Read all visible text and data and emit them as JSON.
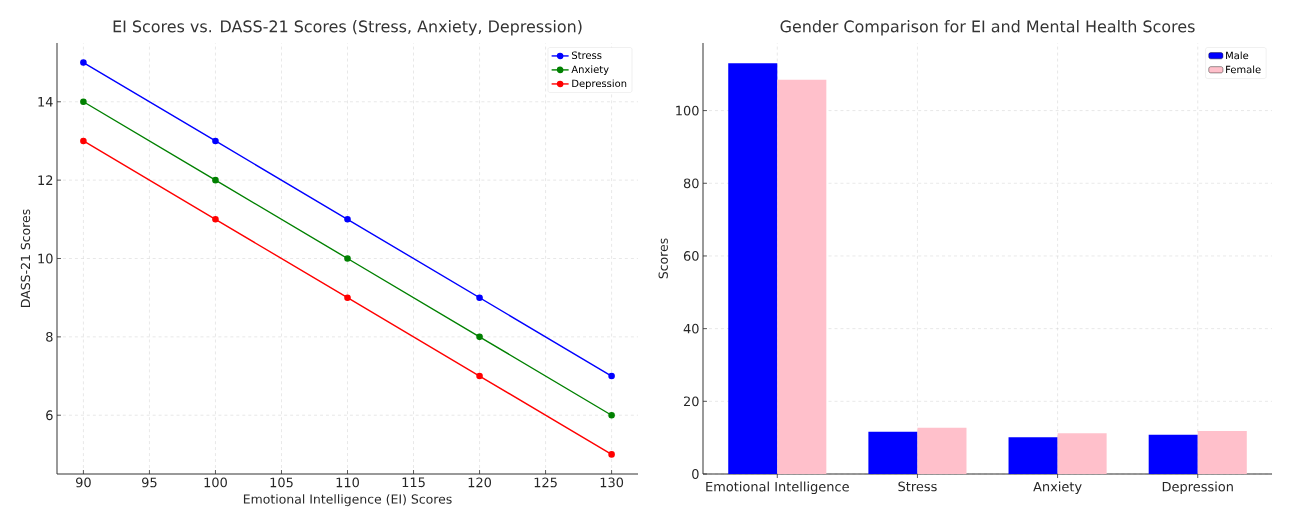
{
  "chart_data": [
    {
      "type": "line",
      "title": "EI Scores vs. DASS-21 Scores (Stress, Anxiety, Depression)",
      "xlabel": "Emotional Intelligence (EI) Scores",
      "ylabel": "DASS-21 Scores",
      "x": [
        90,
        100,
        110,
        120,
        130
      ],
      "series": [
        {
          "name": "Stress",
          "color": "#0000ff",
          "values": [
            15,
            13,
            11,
            9,
            7
          ]
        },
        {
          "name": "Anxiety",
          "color": "#008000",
          "values": [
            14,
            12,
            10,
            8,
            6
          ]
        },
        {
          "name": "Depression",
          "color": "#ff0000",
          "values": [
            13,
            11,
            9,
            7,
            5
          ]
        }
      ],
      "xlim": [
        88,
        132
      ],
      "ylim": [
        4.5,
        15.5
      ],
      "xticks": [
        90,
        95,
        100,
        105,
        110,
        115,
        120,
        125,
        130
      ],
      "yticks": [
        6,
        8,
        10,
        12,
        14
      ],
      "grid": true,
      "legend": "top right",
      "marker": "circle",
      "line_style": "solid"
    },
    {
      "type": "bar",
      "title": "Gender Comparison for EI and Mental Health Scores",
      "ylabel": "Scores",
      "categories": [
        "Emotional Intelligence",
        "Stress",
        "Anxiety",
        "Depression"
      ],
      "series": [
        {
          "name": "Male",
          "color": "#0000ff",
          "values": [
            113,
            11.6,
            10.1,
            10.8
          ]
        },
        {
          "name": "Female",
          "color": "#ffc0cb",
          "values": [
            108.5,
            12.7,
            11.2,
            11.8
          ]
        }
      ],
      "ylim": [
        0,
        118.6
      ],
      "yticks": [
        0,
        20,
        40,
        60,
        80,
        100
      ],
      "grid": true,
      "legend": "top right"
    }
  ]
}
